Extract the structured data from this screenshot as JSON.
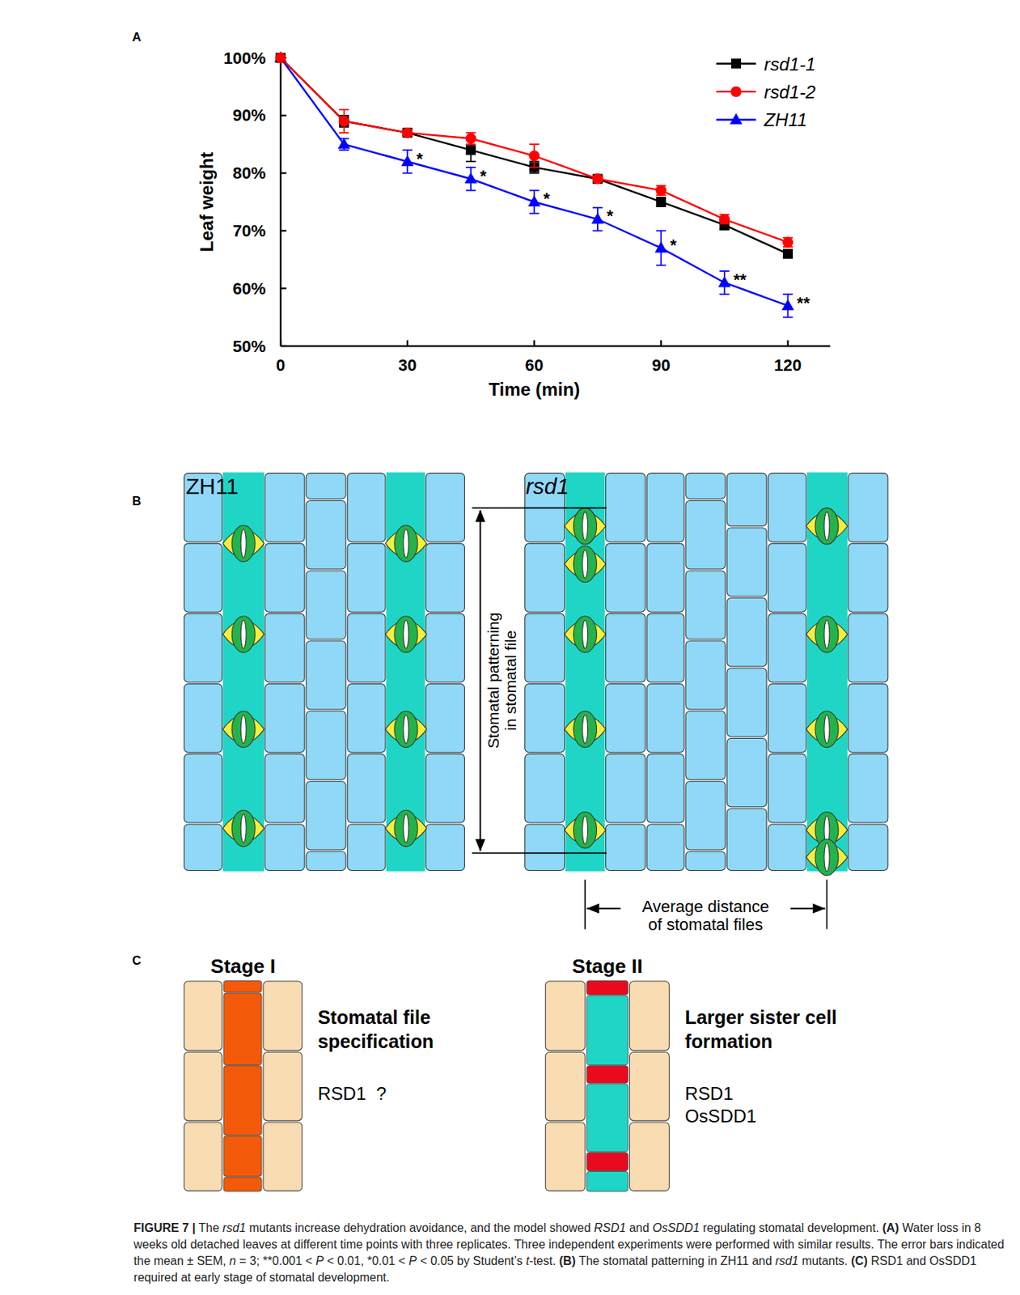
{
  "chart_data": {
    "type": "line",
    "x_label": "Time (min)",
    "y_label": "Leaf weight",
    "x": [
      0,
      15,
      30,
      45,
      60,
      75,
      90,
      105,
      120
    ],
    "xlim": [
      0,
      130
    ],
    "xticks": [
      0,
      30,
      60,
      90,
      120
    ],
    "ylim": [
      50,
      100
    ],
    "yticks": [
      {
        "value": 50,
        "label": "50%"
      },
      {
        "value": 60,
        "label": "60%"
      },
      {
        "value": 70,
        "label": "70%"
      },
      {
        "value": 80,
        "label": "80%"
      },
      {
        "value": 90,
        "label": "90%"
      },
      {
        "value": 100,
        "label": "100%"
      }
    ],
    "grid": false,
    "legend": "top-right",
    "series": [
      {
        "name": "rsd1-1",
        "color": "#000000",
        "marker": "square",
        "line_style": "solid",
        "values": [
          100,
          89,
          87,
          84,
          81,
          79,
          75,
          71,
          66
        ],
        "errors": [
          0,
          1,
          0.5,
          2,
          1,
          0.5,
          0.8,
          0.8,
          0.6
        ]
      },
      {
        "name": "rsd1-2",
        "color": "#ff0000",
        "marker": "circle",
        "line_style": "solid",
        "values": [
          100,
          89,
          87,
          86,
          83,
          79,
          77,
          72,
          68
        ],
        "errors": [
          0,
          2,
          0.5,
          1,
          2,
          0.5,
          0.8,
          0.8,
          0.8
        ]
      },
      {
        "name": "ZH11",
        "color": "#0000ff",
        "marker": "triangle",
        "line_style": "solid",
        "values": [
          100,
          85,
          82,
          79,
          75,
          72,
          67,
          61,
          57
        ],
        "errors": [
          0,
          1,
          2,
          2,
          2,
          2,
          3,
          2,
          2
        ],
        "significance": [
          null,
          null,
          "*",
          "*",
          "*",
          "*",
          "*",
          "**",
          "**"
        ]
      }
    ]
  },
  "panel_labels": [
    "A",
    "B",
    "C"
  ],
  "panel_b": {
    "left_title": "ZH11",
    "right_title": "rsd1",
    "patterning_label": [
      "Stomatal patterning",
      "in stomatal file"
    ],
    "distance_label": [
      "Average distance",
      "of stomatal files"
    ]
  },
  "panel_c": {
    "stages": [
      {
        "title": "Stage I",
        "process": [
          "Stomatal file",
          "specification"
        ],
        "genes": [
          "RSD1  ?"
        ]
      },
      {
        "title": "Stage II",
        "process": [
          "Larger sister cell",
          "formation"
        ],
        "genes": [
          "RSD1",
          "OsSDD1"
        ]
      }
    ]
  },
  "caption": {
    "lines": [
      [
        {
          "text": "FIGURE 7 |",
          "style": "bold"
        },
        {
          "text": " The "
        },
        {
          "text": "rsd1",
          "style": "italic"
        },
        {
          "text": " mutants increase dehydration avoidance, and the model showed "
        },
        {
          "text": "RSD1",
          "style": "italic"
        },
        {
          "text": " and "
        },
        {
          "text": "OsSDD1",
          "style": "italic"
        },
        {
          "text": " regulating stomatal development. "
        },
        {
          "text": "(A)",
          "style": "bold"
        },
        {
          "text": " Water loss in 8"
        }
      ],
      [
        {
          "text": "weeks old detached leaves at different time points with three replicates. Three independent experiments were performed with similar results. The error bars indicated"
        }
      ],
      [
        {
          "text": "the mean ± SEM, "
        },
        {
          "text": "n",
          "style": "italic"
        },
        {
          "text": " = 3; **0.001 < "
        },
        {
          "text": "P",
          "style": "italic"
        },
        {
          "text": " < 0.01, *0.01 < "
        },
        {
          "text": "P",
          "style": "italic"
        },
        {
          "text": " < 0.05 by Student’s "
        },
        {
          "text": "t",
          "style": "italic"
        },
        {
          "text": "-test. "
        },
        {
          "text": "(B)",
          "style": "bold"
        },
        {
          "text": " The stomatal patterning in ZH11 and "
        },
        {
          "text": "rsd1",
          "style": "italic"
        },
        {
          "text": " mutants. "
        },
        {
          "text": "(C)",
          "style": "bold"
        },
        {
          "text": " RSD1 and OsSDD1"
        }
      ],
      [
        {
          "text": "required at early stage of stomatal development."
        }
      ]
    ]
  }
}
